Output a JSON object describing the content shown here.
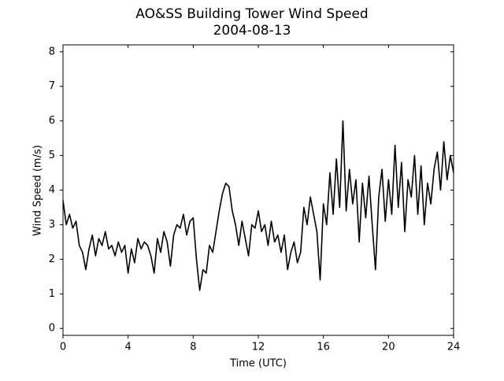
{
  "chart_data": {
    "type": "line",
    "title": "AO&SS Building Tower Wind Speed",
    "subtitle": "2004-08-13",
    "x_label": "Time (UTC)",
    "y_label": "Wind Speed (m/s)",
    "xlim": [
      0,
      24
    ],
    "xticks": [
      0,
      4,
      8,
      12,
      16,
      20,
      24
    ],
    "ylim": [
      -0.2,
      8.2
    ],
    "yticks": [
      0,
      1,
      2,
      3,
      4,
      5,
      6,
      7,
      8
    ],
    "grid": false,
    "series": [
      {
        "color": "#000000",
        "x": [
          0,
          0.2,
          0.4,
          0.6,
          0.8,
          1,
          1.2,
          1.4,
          1.6,
          1.8,
          2,
          2.2,
          2.4,
          2.6,
          2.8,
          3,
          3.2,
          3.4,
          3.6,
          3.8,
          4,
          4.2,
          4.4,
          4.6,
          4.8,
          5,
          5.2,
          5.4,
          5.6,
          5.8,
          6,
          6.2,
          6.4,
          6.6,
          6.8,
          7,
          7.2,
          7.4,
          7.6,
          7.8,
          8,
          8.2,
          8.4,
          8.6,
          8.8,
          9,
          9.2,
          9.4,
          9.6,
          9.8,
          10,
          10.2,
          10.4,
          10.6,
          10.8,
          11,
          11.2,
          11.4,
          11.6,
          11.8,
          12,
          12.2,
          12.4,
          12.6,
          12.8,
          13,
          13.2,
          13.4,
          13.6,
          13.8,
          14,
          14.2,
          14.4,
          14.6,
          14.8,
          15,
          15.2,
          15.4,
          15.6,
          15.8,
          16,
          16.2,
          16.4,
          16.6,
          16.8,
          17,
          17.2,
          17.4,
          17.6,
          17.8,
          18,
          18.2,
          18.4,
          18.6,
          18.8,
          19,
          19.2,
          19.4,
          19.6,
          19.8,
          20,
          20.2,
          20.4,
          20.6,
          20.8,
          21,
          21.2,
          21.4,
          21.6,
          21.8,
          22,
          22.2,
          22.4,
          22.6,
          22.8,
          23,
          23.2,
          23.4,
          23.6,
          23.8,
          24
        ],
        "values": [
          3.7,
          3.0,
          3.3,
          2.9,
          3.1,
          2.4,
          2.2,
          1.7,
          2.3,
          2.7,
          2.1,
          2.6,
          2.4,
          2.8,
          2.3,
          2.4,
          2.1,
          2.5,
          2.2,
          2.4,
          1.6,
          2.3,
          1.9,
          2.6,
          2.3,
          2.5,
          2.4,
          2.1,
          1.6,
          2.6,
          2.2,
          2.8,
          2.5,
          1.8,
          2.7,
          3.0,
          2.9,
          3.3,
          2.7,
          3.1,
          3.2,
          2.0,
          1.1,
          1.7,
          1.6,
          2.4,
          2.2,
          2.8,
          3.4,
          3.9,
          4.2,
          4.1,
          3.4,
          3.0,
          2.4,
          3.1,
          2.6,
          2.1,
          3.0,
          2.9,
          3.4,
          2.8,
          3.0,
          2.4,
          3.1,
          2.5,
          2.7,
          2.2,
          2.7,
          1.7,
          2.2,
          2.5,
          1.9,
          2.2,
          3.5,
          3.0,
          3.8,
          3.3,
          2.8,
          1.4,
          3.6,
          3.0,
          4.5,
          3.3,
          4.9,
          3.5,
          6.0,
          3.4,
          4.6,
          3.6,
          4.3,
          2.5,
          4.2,
          3.2,
          4.4,
          3.0,
          1.7,
          3.8,
          4.6,
          3.1,
          4.3,
          3.3,
          5.3,
          3.5,
          4.8,
          2.8,
          4.3,
          3.8,
          5.0,
          3.3,
          4.7,
          3.0,
          4.2,
          3.6,
          4.6,
          5.1,
          4.0,
          5.4,
          4.3,
          5.0,
          4.5
        ]
      }
    ]
  }
}
